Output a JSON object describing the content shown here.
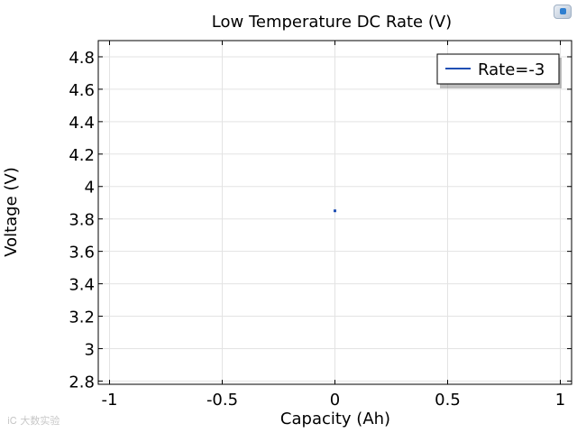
{
  "chart_data": {
    "type": "line",
    "title": "Low Temperature DC Rate (V)",
    "xlabel": "Capacity (Ah)",
    "ylabel": "Voltage (V)",
    "xlim": [
      -1.05,
      1.05
    ],
    "ylim": [
      2.78,
      4.9
    ],
    "x_ticks": [
      -1,
      -0.5,
      0,
      0.5,
      1
    ],
    "x_tick_labels": [
      "-1",
      "-0.5",
      "0",
      "0.5",
      "1"
    ],
    "y_ticks": [
      2.8,
      3,
      3.2,
      3.4,
      3.6,
      3.8,
      4,
      4.2,
      4.4,
      4.6,
      4.8
    ],
    "y_tick_labels": [
      "2.8",
      "3",
      "3.2",
      "3.4",
      "3.6",
      "3.8",
      "4",
      "4.2",
      "4.4",
      "4.6",
      "4.8"
    ],
    "grid": true,
    "legend_position": "top-right",
    "series": [
      {
        "name": "Rate=-3",
        "color": "#1f4fb4",
        "x": [
          0
        ],
        "y": [
          3.85
        ]
      }
    ]
  },
  "watermark": {
    "text": "iᏟ 大数实验"
  },
  "icons": {
    "corner_logo": "app-logo-icon"
  }
}
